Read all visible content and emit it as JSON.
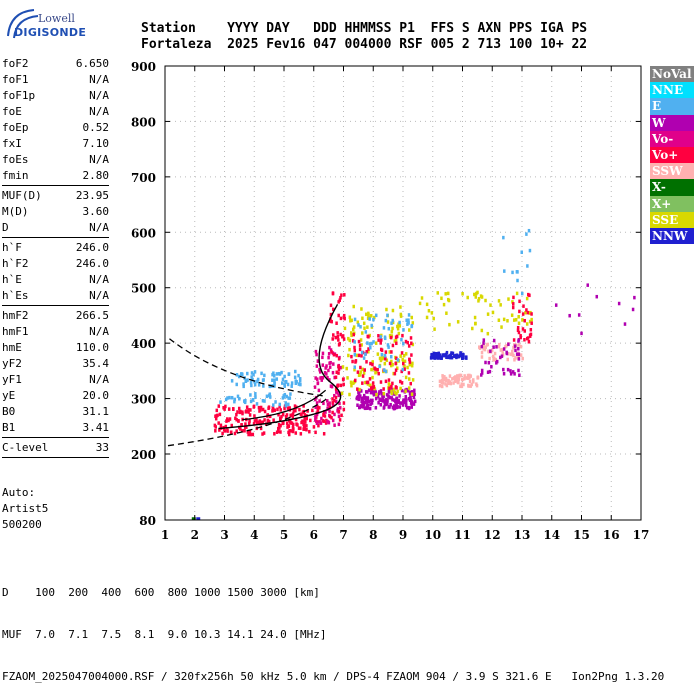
{
  "logo": {
    "line1": "Lowell",
    "line2": "DIGISONDE"
  },
  "header": {
    "row1": "Station    YYYY DAY   DDD HHMMSS P1  FFS S AXN PPS IGA PS",
    "row2": "Fortaleza  2025 Fev16 047 004000 RSF 005 2 713 100 10+ 22"
  },
  "params": {
    "group1": [
      {
        "name": "foF2",
        "value": "6.650"
      },
      {
        "name": "foF1",
        "value": "N/A"
      },
      {
        "name": "foF1p",
        "value": "N/A"
      },
      {
        "name": "foE",
        "value": "N/A"
      },
      {
        "name": "foEp",
        "value": "0.52"
      },
      {
        "name": "fxI",
        "value": "7.10"
      },
      {
        "name": "foEs",
        "value": "N/A"
      },
      {
        "name": "fmin",
        "value": "2.80"
      }
    ],
    "group2": [
      {
        "name": "MUF(D)",
        "value": "23.95"
      },
      {
        "name": "M(D)",
        "value": "3.60"
      },
      {
        "name": "D",
        "value": "N/A"
      }
    ],
    "group3": [
      {
        "name": "h`F",
        "value": "246.0"
      },
      {
        "name": "h`F2",
        "value": "246.0"
      },
      {
        "name": "h`E",
        "value": "N/A"
      },
      {
        "name": "h`Es",
        "value": "N/A"
      }
    ],
    "group4": [
      {
        "name": "hmF2",
        "value": "266.5"
      },
      {
        "name": "hmF1",
        "value": "N/A"
      },
      {
        "name": "hmE",
        "value": "110.0"
      },
      {
        "name": "yF2",
        "value": "35.4"
      },
      {
        "name": "yF1",
        "value": "N/A"
      },
      {
        "name": "yE",
        "value": "20.0"
      },
      {
        "name": "B0",
        "value": "31.1"
      },
      {
        "name": "B1",
        "value": "3.41"
      }
    ],
    "group5": [
      {
        "name": "C-level",
        "value": "33"
      }
    ]
  },
  "auto": {
    "line1": "Auto:",
    "line2": "Artist5",
    "line3": "500200"
  },
  "legend": [
    {
      "label": "NoVal",
      "bg": "#808080",
      "fg": "#ffffff"
    },
    {
      "label": "NNE",
      "bg": "#00e0ff",
      "fg": "#ffffff"
    },
    {
      "label": "E",
      "bg": "#50b0f0",
      "fg": "#ffffff"
    },
    {
      "label": "W",
      "bg": "#b000b0",
      "fg": "#ffffff"
    },
    {
      "label": "Vo-",
      "bg": "#e0008a",
      "fg": "#ffffff"
    },
    {
      "label": "Vo+",
      "bg": "#ff0040",
      "fg": "#ffffff"
    },
    {
      "label": "SSW",
      "bg": "#ffb0b0",
      "fg": "#ffffff"
    },
    {
      "label": "X-",
      "bg": "#007000",
      "fg": "#ffffff"
    },
    {
      "label": "X+",
      "bg": "#80c060",
      "fg": "#ffffff"
    },
    {
      "label": "SSE",
      "bg": "#d8d800",
      "fg": "#ffffff"
    },
    {
      "label": "NNW",
      "bg": "#2020d0",
      "fg": "#ffffff"
    }
  ],
  "footer": {
    "line1": "D    100  200  400  600  800 1000 1500 3000 [km]",
    "line2": "MUF  7.0  7.1  7.5  8.1  9.0 10.3 14.1 24.0 [MHz]",
    "line3": "FZAOM_2025047004000.RSF / 320fx256h 50 kHz 5.0 km / DPS-4 FZAOM 904 / 3.9 S 321.6 E   Ion2Png 1.3.20"
  },
  "chart_data": {
    "type": "scatter",
    "title": "",
    "xlabel": "",
    "ylabel": "",
    "xlim": [
      1,
      17
    ],
    "ylim": [
      80,
      900
    ],
    "x_ticks": [
      "1",
      "2",
      "3",
      "4",
      "5",
      "6",
      "7",
      "8",
      "9",
      "10",
      "11",
      "12",
      "13",
      "14",
      "15",
      "16",
      "17"
    ],
    "y_ticks": [
      "80",
      "200",
      "300",
      "400",
      "500",
      "600",
      "700",
      "800",
      "900"
    ],
    "grid": true,
    "legend_position": "right",
    "trace_clusters": [
      {
        "series": "Vo+",
        "x_range": [
          2.6,
          6.4
        ],
        "y_range": [
          238,
          290
        ],
        "density": 220
      },
      {
        "series": "E",
        "x_range": [
          3.2,
          5.6
        ],
        "y_range": [
          325,
          352
        ],
        "density": 70
      },
      {
        "series": "E",
        "x_range": [
          2.8,
          5.2
        ],
        "y_range": [
          290,
          312
        ],
        "density": 40
      },
      {
        "series": "Vo-",
        "x_range": [
          6.0,
          6.9
        ],
        "y_range": [
          255,
          400
        ],
        "density": 90
      },
      {
        "series": "Vo+",
        "x_range": [
          6.5,
          7.0
        ],
        "y_range": [
          260,
          500
        ],
        "density": 60
      },
      {
        "series": "W",
        "x_range": [
          7.4,
          9.4
        ],
        "y_range": [
          285,
          320
        ],
        "density": 180
      },
      {
        "series": "SSE",
        "x_range": [
          6.9,
          9.3
        ],
        "y_range": [
          310,
          470
        ],
        "density": 140
      },
      {
        "series": "Vo+",
        "x_range": [
          7.2,
          9.3
        ],
        "y_range": [
          320,
          420
        ],
        "density": 90
      },
      {
        "series": "E",
        "x_range": [
          7.3,
          9.3
        ],
        "y_range": [
          350,
          460
        ],
        "density": 50
      },
      {
        "series": "NNW",
        "x_range": [
          9.9,
          11.1
        ],
        "y_range": [
          375,
          386
        ],
        "density": 70
      },
      {
        "series": "SSW",
        "x_range": [
          10.2,
          11.5
        ],
        "y_range": [
          325,
          345
        ],
        "density": 70
      },
      {
        "series": "SSW",
        "x_range": [
          11.5,
          13.0
        ],
        "y_range": [
          372,
          402
        ],
        "density": 50
      },
      {
        "series": "W",
        "x_range": [
          11.5,
          12.9
        ],
        "y_range": [
          345,
          410
        ],
        "density": 40
      },
      {
        "series": "SSE",
        "x_range": [
          9.5,
          13.3
        ],
        "y_range": [
          420,
          495
        ],
        "density": 60
      },
      {
        "series": "Vo+",
        "x_range": [
          12.6,
          13.3
        ],
        "y_range": [
          400,
          500
        ],
        "density": 30
      },
      {
        "series": "E",
        "x_range": [
          12.3,
          13.3
        ],
        "y_range": [
          480,
          620
        ],
        "density": 12
      },
      {
        "series": "W",
        "x_range": [
          13.8,
          16.8
        ],
        "y_range": [
          410,
          510
        ],
        "density": 10
      }
    ]
  }
}
